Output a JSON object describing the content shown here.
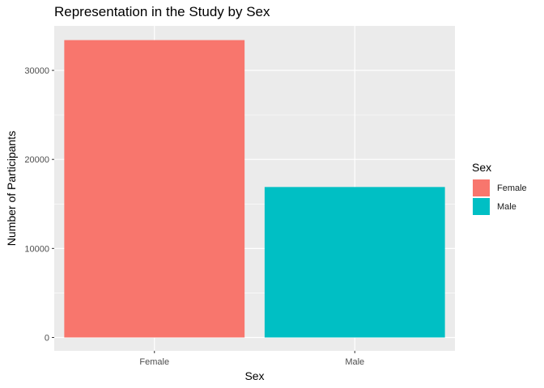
{
  "chart_data": {
    "type": "bar",
    "title": "Representation in the Study by Sex",
    "xlabel": "Sex",
    "ylabel": "Number of Participants",
    "categories": [
      "Female",
      "Male"
    ],
    "values": [
      33400,
      16900
    ],
    "colors": [
      "#F8766D",
      "#00BFC4"
    ],
    "ylim": [
      -1500,
      35000
    ],
    "yticks": [
      0,
      10000,
      20000,
      30000
    ],
    "ytick_labels": [
      "0",
      "10000",
      "20000",
      "30000"
    ],
    "grid": true,
    "background": "#EBEBEB",
    "legend": {
      "title": "Sex",
      "position": "right",
      "entries": [
        "Female",
        "Male"
      ]
    }
  }
}
